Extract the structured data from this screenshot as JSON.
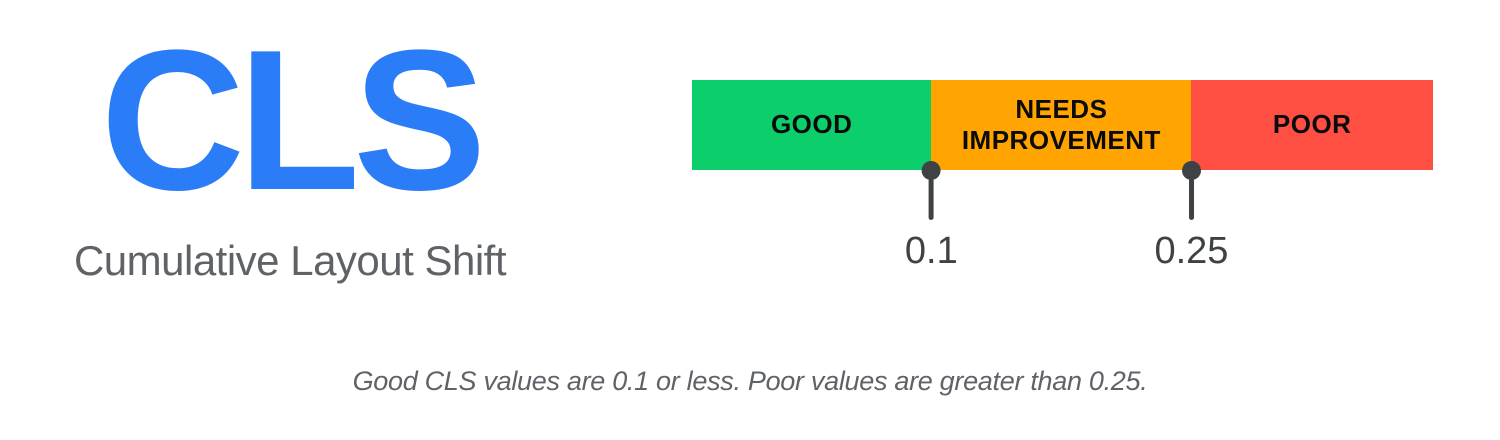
{
  "metric": {
    "abbr": "CLS",
    "name": "Cumulative Layout Shift"
  },
  "colors": {
    "metric_blue": "#2b7cf7",
    "subtitle_gray": "#5f6368",
    "bar_text_black": "#0b0b0b",
    "marker_gray": "#3f4245"
  },
  "scale": {
    "segments": [
      {
        "id": "good",
        "label": "GOOD",
        "color": "#0cce6b",
        "width_pct": "32.3%"
      },
      {
        "id": "needs-improvement",
        "label": "NEEDS IMPROVEMENT",
        "color": "#ffa400",
        "width_pct": "35.1%"
      },
      {
        "id": "poor",
        "label": "POOR",
        "color": "#ff4e42",
        "width_pct": "32.6%"
      }
    ],
    "thresholds": [
      {
        "value": "0.1",
        "position_pct": "32.3%"
      },
      {
        "value": "0.25",
        "position_pct": "67.4%"
      }
    ]
  },
  "caption": "Good CLS values are 0.1 or less. Poor values are greater than 0.25."
}
